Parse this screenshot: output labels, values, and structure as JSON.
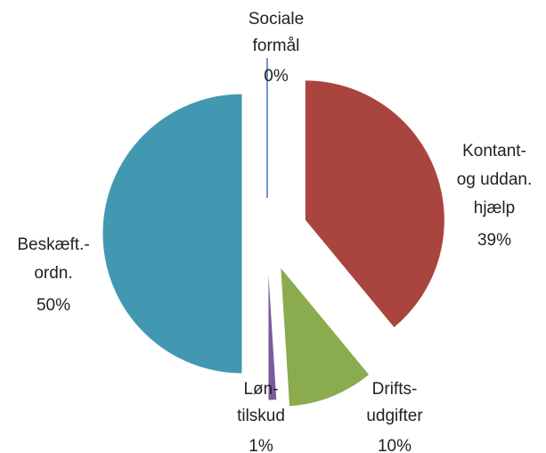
{
  "chart_data": {
    "type": "pie",
    "categories": [
      [
        "Sociale",
        "formål"
      ],
      [
        "Kontant-",
        "og uddan.",
        "hjælp"
      ],
      [
        "Drifts-",
        "udgifter"
      ],
      [
        "Løn-",
        "tilskud"
      ],
      [
        "Beskæft.-",
        "ordn."
      ]
    ],
    "values": [
      0,
      39,
      10,
      1,
      50
    ],
    "value_labels": [
      "0%",
      "39%",
      "10%",
      "1%",
      "50%"
    ],
    "colors": [
      "#4472c4",
      "#a9443f",
      "#8aab4e",
      "#7a5b9c",
      "#4298b1"
    ]
  }
}
